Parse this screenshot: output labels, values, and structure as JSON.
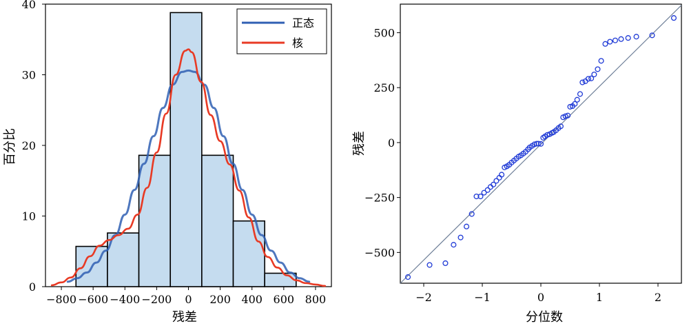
{
  "chart_data": [
    {
      "type": "bar",
      "xlabel": "残差",
      "ylabel": "百分比",
      "xlim": [
        -900,
        900
      ],
      "ylim": [
        0,
        40
      ],
      "xticks": [
        -800,
        -600,
        -400,
        -200,
        0,
        200,
        400,
        600,
        800
      ],
      "xtick_labels": [
        "−800",
        "−600",
        "−400",
        "−200",
        "0",
        "200",
        "400",
        "600",
        "800"
      ],
      "yticks": [
        0,
        10,
        20,
        30,
        40
      ],
      "ytick_labels": [
        "0",
        "10",
        "20",
        "30",
        "40"
      ],
      "bin_edges": [
        -708,
        -510,
        -312,
        -114,
        84,
        282,
        480,
        678
      ],
      "bars": [
        {
          "x0": -708,
          "x1": -510,
          "value": 5.7
        },
        {
          "x0": -510,
          "x1": -312,
          "value": 7.6
        },
        {
          "x0": -312,
          "x1": -114,
          "value": 18.6
        },
        {
          "x0": -114,
          "x1": 84,
          "value": 38.8
        },
        {
          "x0": 84,
          "x1": 282,
          "value": 18.6
        },
        {
          "x0": 282,
          "x1": 480,
          "value": 9.3
        },
        {
          "x0": 480,
          "x1": 678,
          "value": 1.9
        }
      ],
      "legend": {
        "position": "top-right",
        "entries": [
          {
            "label": "正态",
            "color": "#2f5fb3"
          },
          {
            "label": "核",
            "color": "#e83a24"
          }
        ]
      },
      "series": [
        {
          "name": "正态",
          "color": "#2f5fb3",
          "x": [
            -760,
            -700,
            -640,
            -580,
            -520,
            -460,
            -400,
            -340,
            -280,
            -220,
            -160,
            -100,
            -40,
            0,
            40,
            100,
            160,
            220,
            280,
            340,
            400,
            460,
            520,
            580,
            640,
            700,
            760
          ],
          "y": [
            0.7,
            1.2,
            2.0,
            3.4,
            5.1,
            7.3,
            10.2,
            13.7,
            17.4,
            21.3,
            25.3,
            28.6,
            30.4,
            30.6,
            30.4,
            28.6,
            25.3,
            21.3,
            17.4,
            13.7,
            10.2,
            7.3,
            5.1,
            3.4,
            2.0,
            1.2,
            0.7
          ]
        },
        {
          "name": "核",
          "color": "#e83a24",
          "x": [
            -860,
            -800,
            -740,
            -680,
            -620,
            -560,
            -500,
            -440,
            -380,
            -320,
            -260,
            -200,
            -140,
            -80,
            -20,
            0,
            20,
            80,
            140,
            200,
            260,
            320,
            380,
            440,
            500,
            560,
            620,
            680,
            740,
            800,
            860
          ],
          "y": [
            0.2,
            0.6,
            1.3,
            2.6,
            4.3,
            5.8,
            6.6,
            7.3,
            8.2,
            10.2,
            14.0,
            19.0,
            24.5,
            30.0,
            33.4,
            33.6,
            33.2,
            29.0,
            24.3,
            20.6,
            17.3,
            13.6,
            9.8,
            6.4,
            4.2,
            2.7,
            1.6,
            0.9,
            0.5,
            0.3,
            0.1
          ]
        }
      ]
    },
    {
      "type": "scatter",
      "xlabel": "分位数",
      "ylabel": "残差",
      "xlim": [
        -2.4,
        2.4
      ],
      "ylim": [
        -640,
        630
      ],
      "xticks": [
        -2,
        -1,
        0,
        1,
        2
      ],
      "xtick_labels": [
        "−2",
        "−1",
        "0",
        "1",
        "2"
      ],
      "yticks": [
        -500,
        -250,
        0,
        250,
        500
      ],
      "ytick_labels": [
        "−500",
        "−250",
        "0",
        "250",
        "500"
      ],
      "reference_line": {
        "x": [
          -2.4,
          2.4
        ],
        "y": [
          -640,
          625
        ]
      },
      "points": {
        "x": [
          -2.27,
          -1.9,
          -1.63,
          -1.49,
          -1.37,
          -1.27,
          -1.18,
          -1.1,
          -1.03,
          -0.97,
          -0.91,
          -0.86,
          -0.81,
          -0.76,
          -0.71,
          -0.67,
          -0.62,
          -0.58,
          -0.54,
          -0.5,
          -0.46,
          -0.42,
          -0.38,
          -0.34,
          -0.3,
          -0.26,
          -0.22,
          -0.19,
          -0.15,
          -0.11,
          -0.07,
          -0.04,
          0.0,
          0.04,
          0.07,
          0.11,
          0.15,
          0.19,
          0.22,
          0.26,
          0.3,
          0.34,
          0.38,
          0.42,
          0.46,
          0.5,
          0.54,
          0.58,
          0.62,
          0.67,
          0.71,
          0.76,
          0.81,
          0.86,
          0.91,
          0.97,
          1.03,
          1.1,
          1.18,
          1.27,
          1.37,
          1.49,
          1.63,
          1.9,
          2.27
        ],
        "y": [
          -612,
          -557,
          -549,
          -465,
          -432,
          -382,
          -325,
          -245,
          -245,
          -228,
          -216,
          -202,
          -191,
          -174,
          -160,
          -146,
          -113,
          -108,
          -101,
          -91,
          -82,
          -73,
          -64,
          -58,
          -50,
          -42,
          -31,
          -22,
          -15,
          -8,
          -5,
          -5,
          -6,
          22,
          28,
          35,
          38,
          44,
          48,
          56,
          66,
          74,
          115,
          120,
          123,
          163,
          166,
          176,
          195,
          221,
          274,
          279,
          290,
          292,
          310,
          334,
          372,
          449,
          459,
          465,
          471,
          476,
          482,
          488,
          567
        ]
      }
    }
  ]
}
